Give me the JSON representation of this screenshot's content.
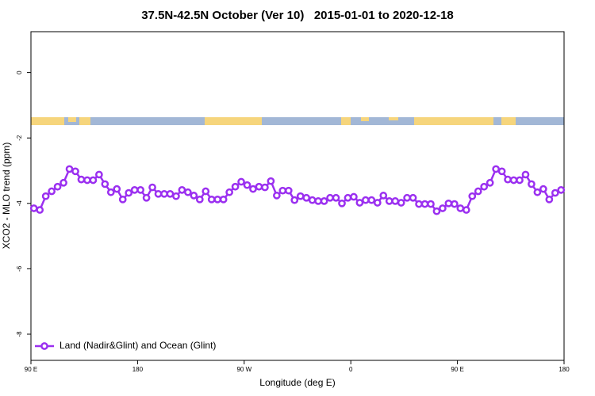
{
  "chart_data": {
    "type": "line",
    "title": "37.5N-42.5N October (Ver 10)   2015-01-01 to 2020-12-18",
    "x_label": "Longitude (deg E)",
    "y_label": "XCO2 - MLO trend (ppm)",
    "x": [
      92.5,
      97.5,
      102.5,
      107.5,
      112.5,
      117.5,
      122.5,
      127.5,
      132.5,
      137.5,
      142.5,
      147.5,
      152.5,
      157.5,
      162.5,
      167.5,
      172.5,
      177.5,
      182.5,
      187.5,
      192.5,
      197.5,
      202.5,
      207.5,
      212.5,
      217.5,
      222.5,
      227.5,
      232.5,
      237.5,
      242.5,
      247.5,
      252.5,
      257.5,
      262.5,
      267.5,
      272.5,
      277.5,
      282.5,
      287.5,
      292.5,
      297.5,
      302.5,
      307.5,
      312.5,
      317.5,
      322.5,
      327.5,
      332.5,
      337.5,
      342.5,
      347.5,
      352.5,
      357.5,
      362.5,
      367.5,
      372.5,
      377.5,
      382.5,
      387.5,
      392.5,
      397.5,
      402.5,
      407.5,
      412.5,
      417.5,
      422.5,
      427.5,
      432.5,
      437.5,
      442.5,
      447.5,
      452.5,
      457.5,
      462.5,
      467.5,
      472.5,
      477.5,
      482.5,
      487.5,
      492.5,
      497.5,
      502.5,
      507.5,
      512.5,
      517.5,
      522.5,
      527.5,
      532.5,
      537.5
    ],
    "series": [
      {
        "name": "Land (Nadir&Glint) and Ocean (Glint)",
        "color": "#9b30f0",
        "values": [
          -4.15,
          -4.2,
          -3.78,
          -3.63,
          -3.49,
          -3.37,
          -2.95,
          -3.02,
          -3.27,
          -3.29,
          -3.29,
          -3.12,
          -3.41,
          -3.66,
          -3.56,
          -3.88,
          -3.68,
          -3.59,
          -3.59,
          -3.83,
          -3.51,
          -3.71,
          -3.71,
          -3.71,
          -3.78,
          -3.59,
          -3.66,
          -3.76,
          -3.88,
          -3.63,
          -3.88,
          -3.88,
          -3.88,
          -3.66,
          -3.49,
          -3.34,
          -3.44,
          -3.56,
          -3.49,
          -3.51,
          -3.32,
          -3.76,
          -3.61,
          -3.61,
          -3.9,
          -3.78,
          -3.83,
          -3.9,
          -3.93,
          -3.93,
          -3.83,
          -3.83,
          -4.0,
          -3.83,
          -3.8,
          -3.98,
          -3.9,
          -3.9,
          -3.98,
          -3.76,
          -3.93,
          -3.93,
          -3.98,
          -3.83,
          -3.83,
          -4.02,
          -4.02,
          -4.02,
          -4.24,
          -4.15,
          -4.0,
          -4.02,
          -4.15,
          -4.2,
          -3.78,
          -3.63,
          -3.49,
          -3.37,
          -2.95,
          -3.02,
          -3.27,
          -3.29,
          -3.29,
          -3.12,
          -3.41,
          -3.66,
          -3.56,
          -3.88,
          -3.68,
          -3.59
        ]
      }
    ],
    "xlim": [
      90,
      540
    ],
    "xticks": [
      {
        "value": 90,
        "label": "90 E"
      },
      {
        "value": 180,
        "label": "180"
      },
      {
        "value": 270,
        "label": "90 W"
      },
      {
        "value": 360,
        "label": "0"
      },
      {
        "value": 450,
        "label": "90 E"
      },
      {
        "value": 540,
        "label": "180"
      }
    ],
    "ylim": [
      -8.8,
      1.25
    ],
    "yticks": [
      0,
      -2,
      -4,
      -6,
      -8
    ],
    "grid": false,
    "legend_position": "bottom left"
  }
}
